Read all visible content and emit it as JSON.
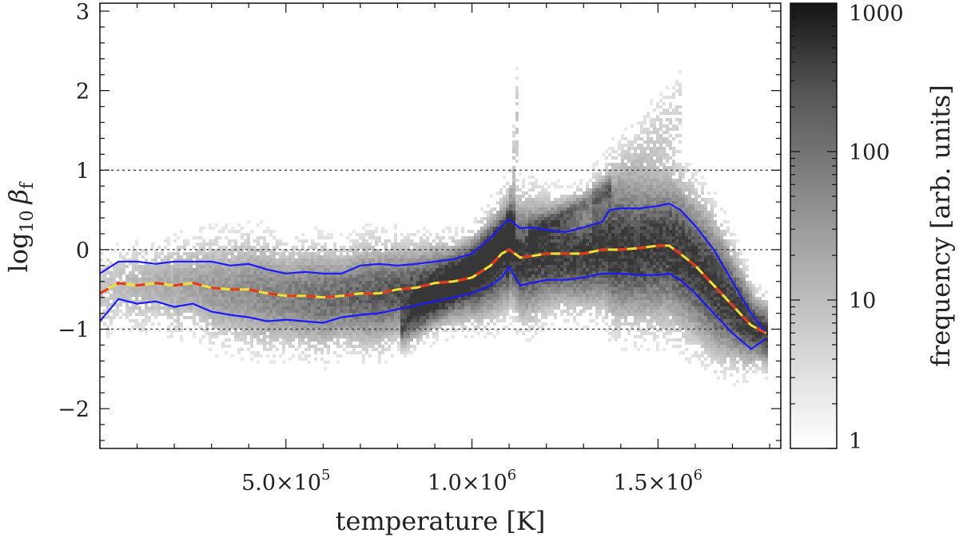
{
  "chart_data": {
    "type": "heatmap",
    "title": "",
    "xlabel": "temperature [K]",
    "ylabel_main": "log",
    "ylabel_sub": "10",
    "ylabel_symbol": "β",
    "ylabel_symbol_sub": "f",
    "xlim": [
      0,
      1830000
    ],
    "ylim": [
      -2.5,
      3.1
    ],
    "x_ticks": [
      {
        "value": 500000,
        "mantissa": "5.0×10",
        "exp": "5"
      },
      {
        "value": 1000000,
        "mantissa": "1.0×10",
        "exp": "6"
      },
      {
        "value": 1500000,
        "mantissa": "1.5×10",
        "exp": "6"
      }
    ],
    "y_ticks": [
      {
        "value": 3,
        "label": "3"
      },
      {
        "value": 2,
        "label": "2"
      },
      {
        "value": 1,
        "label": "1"
      },
      {
        "value": 0,
        "label": "0"
      },
      {
        "value": -1,
        "label": "−1"
      },
      {
        "value": -2,
        "label": "−2"
      }
    ],
    "reference_lines_y": [
      1,
      0,
      -1
    ],
    "colorbar": {
      "label": "frequency [arb. units]",
      "scale": "log",
      "range": [
        1,
        1000
      ],
      "ticks": [
        {
          "value": 1000,
          "label": "1000"
        },
        {
          "value": 100,
          "label": "100"
        },
        {
          "value": 10,
          "label": "10"
        },
        {
          "value": 1,
          "label": "1"
        }
      ],
      "color_low": "#ffffff",
      "color_high": "#141414"
    },
    "colors": {
      "quantile_lines": "#1a1aff",
      "median_dash_a": "#e8341c",
      "median_dash_b": "#f2e232",
      "reference_line": "#333333"
    },
    "series": [
      {
        "style": "upper",
        "x": [
          0,
          50000,
          100000,
          150000,
          200000,
          250000,
          300000,
          350000,
          400000,
          450000,
          500000,
          550000,
          600000,
          650000,
          700000,
          750000,
          800000,
          850000,
          900000,
          950000,
          1000000,
          1050000,
          1080000,
          1100000,
          1130000,
          1160000,
          1200000,
          1250000,
          1300000,
          1350000,
          1370000,
          1400000,
          1450000,
          1500000,
          1530000,
          1560000,
          1600000,
          1650000,
          1700000,
          1750000,
          1790000
        ],
        "y": [
          -0.3,
          -0.15,
          -0.15,
          -0.18,
          -0.15,
          -0.15,
          -0.15,
          -0.2,
          -0.18,
          -0.25,
          -0.3,
          -0.28,
          -0.3,
          -0.3,
          -0.2,
          -0.18,
          -0.2,
          -0.18,
          -0.15,
          -0.12,
          -0.05,
          0.15,
          0.3,
          0.38,
          0.27,
          0.28,
          0.25,
          0.22,
          0.28,
          0.35,
          0.5,
          0.52,
          0.52,
          0.55,
          0.58,
          0.5,
          0.3,
          0.0,
          -0.4,
          -0.8,
          -1.05
        ]
      },
      {
        "style": "median",
        "x": [
          0,
          50000,
          100000,
          150000,
          200000,
          250000,
          300000,
          350000,
          400000,
          450000,
          500000,
          550000,
          600000,
          650000,
          700000,
          750000,
          800000,
          850000,
          900000,
          950000,
          1000000,
          1050000,
          1080000,
          1100000,
          1130000,
          1160000,
          1200000,
          1250000,
          1300000,
          1350000,
          1400000,
          1450000,
          1500000,
          1530000,
          1560000,
          1600000,
          1650000,
          1700000,
          1750000,
          1790000
        ],
        "y": [
          -0.55,
          -0.42,
          -0.45,
          -0.42,
          -0.45,
          -0.42,
          -0.48,
          -0.5,
          -0.5,
          -0.55,
          -0.58,
          -0.58,
          -0.6,
          -0.58,
          -0.55,
          -0.55,
          -0.5,
          -0.48,
          -0.42,
          -0.4,
          -0.35,
          -0.2,
          -0.05,
          0.0,
          -0.1,
          -0.08,
          -0.05,
          -0.05,
          -0.05,
          0.0,
          0.0,
          0.02,
          0.05,
          0.05,
          -0.05,
          -0.2,
          -0.45,
          -0.7,
          -0.95,
          -1.05
        ]
      },
      {
        "style": "lower",
        "x": [
          0,
          50000,
          100000,
          150000,
          200000,
          250000,
          300000,
          350000,
          400000,
          450000,
          500000,
          550000,
          600000,
          650000,
          700000,
          750000,
          800000,
          850000,
          900000,
          950000,
          1000000,
          1050000,
          1080000,
          1100000,
          1130000,
          1160000,
          1200000,
          1250000,
          1300000,
          1350000,
          1400000,
          1450000,
          1500000,
          1530000,
          1560000,
          1600000,
          1650000,
          1700000,
          1750000,
          1790000
        ],
        "y": [
          -0.9,
          -0.62,
          -0.68,
          -0.65,
          -0.72,
          -0.68,
          -0.78,
          -0.82,
          -0.85,
          -0.9,
          -0.88,
          -0.9,
          -0.92,
          -0.85,
          -0.82,
          -0.8,
          -0.75,
          -0.7,
          -0.65,
          -0.6,
          -0.55,
          -0.45,
          -0.35,
          -0.22,
          -0.45,
          -0.42,
          -0.38,
          -0.38,
          -0.35,
          -0.3,
          -0.3,
          -0.32,
          -0.32,
          -0.3,
          -0.38,
          -0.55,
          -0.8,
          -1.05,
          -1.25,
          -1.12
        ]
      }
    ],
    "density_model": {
      "note_free": "",
      "ridges": [
        {
          "x0": 0,
          "x1": 1530000,
          "y_from": "median",
          "spread": 0.55,
          "weight": 1.0
        },
        {
          "x0": 800000,
          "x1": 1110000,
          "y_center_start": -1.0,
          "y_center_end": 0.3,
          "spread": 0.25,
          "weight": 1.6
        },
        {
          "x0": 1150000,
          "x1": 1370000,
          "y_center_start": 0.2,
          "y_center_end": 0.8,
          "spread": 0.15,
          "weight": 1.1
        },
        {
          "x0": 1090000,
          "x1": 1120000,
          "y_center_start": 0.0,
          "y_center_end": 1.8,
          "spread": 0.6,
          "weight": 0.7
        },
        {
          "x0": 1320000,
          "x1": 1560000,
          "y_center_start": 0.5,
          "y_center_end": 1.8,
          "spread": 0.5,
          "weight": 0.5
        }
      ]
    }
  }
}
